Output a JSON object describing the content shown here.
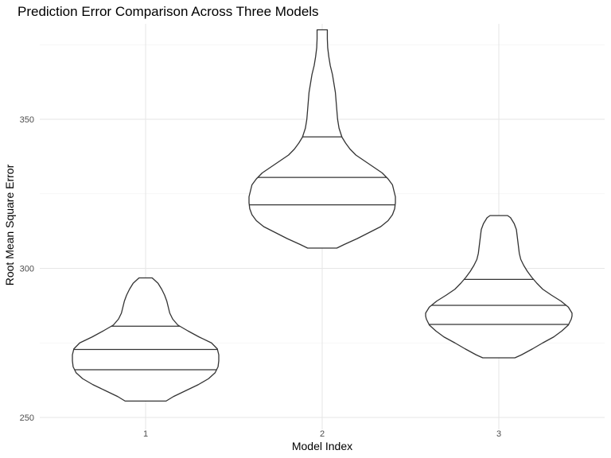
{
  "chart_data": {
    "type": "violin",
    "title": "Prediction Error Comparison Across Three Models",
    "xlabel": "Model Index",
    "ylabel": "Root Mean Square Error",
    "categories": [
      "1",
      "2",
      "3"
    ],
    "ylim": [
      246,
      382
    ],
    "yticks": [
      250,
      300,
      350
    ],
    "grid": true,
    "legend": "none",
    "colors": {
      "outline": "#333333",
      "fill": "#ffffff",
      "grid_major": "#e6e6e6",
      "grid_minor": "#f2f2f2"
    },
    "violins": [
      {
        "category": "1",
        "min": 255.5,
        "max": 296.8,
        "quantiles": [
          266,
          272.8,
          280.6
        ],
        "width_profile": [
          [
            255.5,
            0.28
          ],
          [
            257,
            0.38
          ],
          [
            259,
            0.55
          ],
          [
            261,
            0.72
          ],
          [
            263,
            0.86
          ],
          [
            265,
            0.95
          ],
          [
            267,
            0.99
          ],
          [
            269,
            1.0
          ],
          [
            271,
            1.0
          ],
          [
            273,
            0.98
          ],
          [
            275,
            0.9
          ],
          [
            277,
            0.73
          ],
          [
            279,
            0.58
          ],
          [
            281,
            0.44
          ],
          [
            283,
            0.37
          ],
          [
            285,
            0.33
          ],
          [
            287,
            0.31
          ],
          [
            289,
            0.29
          ],
          [
            291,
            0.26
          ],
          [
            293,
            0.22
          ],
          [
            295,
            0.17
          ],
          [
            296.8,
            0.09
          ]
        ]
      },
      {
        "category": "2",
        "min": 306.8,
        "max": 380,
        "quantiles": [
          321.3,
          330.5,
          344.1
        ],
        "width_profile": [
          [
            306.8,
            0.2
          ],
          [
            308,
            0.3
          ],
          [
            310,
            0.48
          ],
          [
            312,
            0.64
          ],
          [
            314,
            0.8
          ],
          [
            316,
            0.9
          ],
          [
            318,
            0.96
          ],
          [
            320,
            0.99
          ],
          [
            322,
            1.0
          ],
          [
            324,
            1.0
          ],
          [
            326,
            0.98
          ],
          [
            328,
            0.96
          ],
          [
            330,
            0.9
          ],
          [
            332,
            0.82
          ],
          [
            334,
            0.7
          ],
          [
            336,
            0.58
          ],
          [
            338,
            0.46
          ],
          [
            340,
            0.38
          ],
          [
            342,
            0.32
          ],
          [
            344,
            0.27
          ],
          [
            347,
            0.23
          ],
          [
            350,
            0.21
          ],
          [
            353,
            0.2
          ],
          [
            356,
            0.19
          ],
          [
            359,
            0.18
          ],
          [
            362,
            0.16
          ],
          [
            365,
            0.14
          ],
          [
            368,
            0.11
          ],
          [
            371,
            0.09
          ],
          [
            374,
            0.075
          ],
          [
            377,
            0.07
          ],
          [
            380,
            0.07
          ]
        ]
      },
      {
        "category": "3",
        "min": 270,
        "max": 317.7,
        "quantiles": [
          281.2,
          287.6,
          296.3
        ],
        "width_profile": [
          [
            270,
            0.22
          ],
          [
            271,
            0.31
          ],
          [
            273,
            0.46
          ],
          [
            275,
            0.6
          ],
          [
            277,
            0.75
          ],
          [
            279,
            0.86
          ],
          [
            281,
            0.95
          ],
          [
            283,
            0.99
          ],
          [
            284,
            1.0
          ],
          [
            285,
            1.0
          ],
          [
            287,
            0.95
          ],
          [
            289,
            0.85
          ],
          [
            291,
            0.72
          ],
          [
            293,
            0.6
          ],
          [
            295,
            0.52
          ],
          [
            297,
            0.45
          ],
          [
            299,
            0.39
          ],
          [
            301,
            0.34
          ],
          [
            303,
            0.3
          ],
          [
            305,
            0.28
          ],
          [
            307,
            0.27
          ],
          [
            309,
            0.26
          ],
          [
            311,
            0.25
          ],
          [
            313,
            0.24
          ],
          [
            315,
            0.21
          ],
          [
            317,
            0.16
          ],
          [
            317.7,
            0.12
          ]
        ]
      }
    ]
  }
}
